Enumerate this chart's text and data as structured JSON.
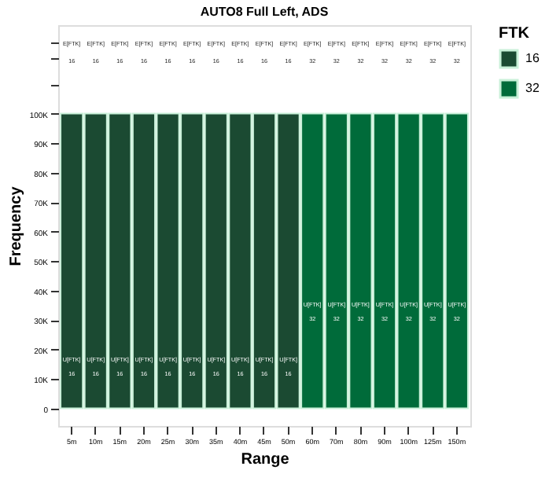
{
  "chart_data": {
    "type": "bar",
    "title": "AUTO8 Full Left, ADS",
    "xlabel": "Range",
    "ylabel": "Frequency",
    "legend_title": "FTK",
    "legend": "right",
    "grid": false,
    "categories": [
      "5m",
      "10m",
      "15m",
      "20m",
      "25m",
      "30m",
      "35m",
      "40m",
      "45m",
      "50m",
      "60m",
      "70m",
      "80m",
      "90m",
      "100m",
      "125m",
      "150m"
    ],
    "series": [
      {
        "name": "16",
        "color": "#1b4a32",
        "values": [
          100000,
          100000,
          100000,
          100000,
          100000,
          100000,
          100000,
          100000,
          100000,
          100000,
          null,
          null,
          null,
          null,
          null,
          null,
          null
        ]
      },
      {
        "name": "32",
        "color": "#006b3a",
        "values": [
          null,
          null,
          null,
          null,
          null,
          null,
          null,
          null,
          null,
          null,
          100000,
          100000,
          100000,
          100000,
          100000,
          100000,
          100000
        ]
      }
    ],
    "ylim": [
      -6000,
      130000
    ],
    "yticks": [
      {
        "value": 0,
        "label": "0"
      },
      {
        "value": 10000,
        "label": "10K"
      },
      {
        "value": 20000,
        "label": "20K"
      },
      {
        "value": 30000,
        "label": "30K"
      },
      {
        "value": 40000,
        "label": "40K"
      },
      {
        "value": 50000,
        "label": "50K"
      },
      {
        "value": 60000,
        "label": "60K"
      },
      {
        "value": 70000,
        "label": "70K"
      },
      {
        "value": 80000,
        "label": "80K"
      },
      {
        "value": 90000,
        "label": "90K"
      },
      {
        "value": 100000,
        "label": "100K"
      },
      {
        "value": 110000,
        "label": null
      },
      {
        "value": 119000,
        "label": null
      },
      {
        "value": 124000,
        "label": null
      }
    ],
    "annotations": [
      "E[FTK]",
      "16",
      "U[FTK]",
      "16",
      "E[FTK]",
      "16",
      "U[FTK]",
      "16",
      "E[FTK]",
      "16",
      "U[FTK]",
      "16",
      "E[FTK]",
      "16",
      "U[FTK]",
      "16",
      "E[FTK]",
      "16",
      "U[FTK]",
      "16",
      "E[FTK]",
      "16",
      "U[FTK]",
      "16",
      "E[FTK]",
      "16",
      "U[FTK]",
      "16",
      "E[FTK]",
      "16",
      "U[FTK]",
      "16",
      "E[FTK]",
      "16",
      "U[FTK]",
      "16",
      "E[FTK]",
      "16",
      "U[FTK]",
      "16",
      "E[FTK]",
      "32",
      "U[FTK]",
      "32",
      "E[FTK]",
      "32",
      "U[FTK]",
      "32",
      "E[FTK]",
      "32",
      "U[FTK]",
      "32",
      "E[FTK]",
      "32",
      "U[FTK]",
      "32",
      "E[FTK]",
      "32",
      "U[FTK]",
      "32",
      "E[FTK]",
      "32",
      "U[FTK]",
      "32",
      "E[FTK]",
      "32",
      "U[FTK]",
      "32"
    ]
  }
}
